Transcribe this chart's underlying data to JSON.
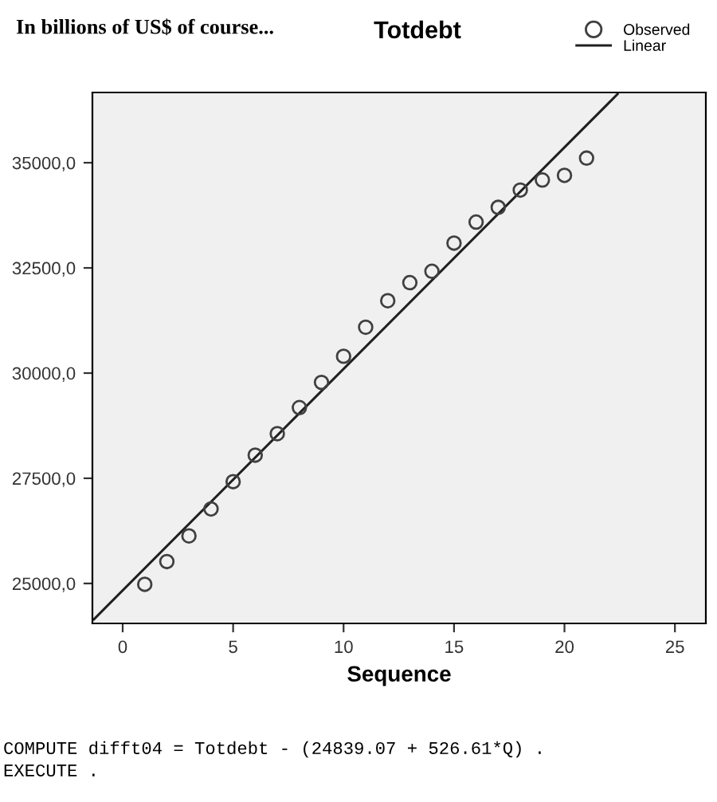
{
  "chart_data": {
    "type": "scatter",
    "title": "Totdebt",
    "xlabel": "Sequence",
    "annotations": [
      "In billions of US$ of course...",
      "COMPUTE difft04 = Totdebt - (24839.07 + 526.61*Q) .",
      "EXECUTE ."
    ],
    "series": [
      {
        "name": "Observed",
        "marker": "circle",
        "color": "#404040",
        "x": [
          1,
          2,
          3,
          4,
          5,
          6,
          7,
          8,
          9,
          10,
          11,
          12,
          13,
          14,
          15,
          16,
          17,
          18,
          19,
          20,
          21
        ],
        "values": [
          24980,
          25520,
          26130,
          26770,
          27420,
          28050,
          28560,
          29180,
          29780,
          30400,
          31090,
          31720,
          32150,
          32420,
          33090,
          33590,
          33940,
          34350,
          34590,
          34700,
          35110
        ]
      },
      {
        "name": "Linear",
        "type": "line",
        "marker": "none",
        "color": "#202020",
        "x": [
          -1.3,
          22.4
        ],
        "values": [
          24150,
          36630
        ]
      }
    ],
    "xlim": [
      -1.37,
      26.4
    ],
    "xticks": [
      0,
      5,
      10,
      15,
      20,
      25
    ],
    "ylim": [
      24050,
      36670
    ],
    "yticks": [
      {
        "value": 25000,
        "label": "25000,0"
      },
      {
        "value": 27500,
        "label": "27500,0"
      },
      {
        "value": 30000,
        "label": "30000,0"
      },
      {
        "value": 32500,
        "label": "32500,0"
      },
      {
        "value": 35000,
        "label": "35000,0"
      }
    ],
    "grid": false,
    "legend": "top right"
  }
}
